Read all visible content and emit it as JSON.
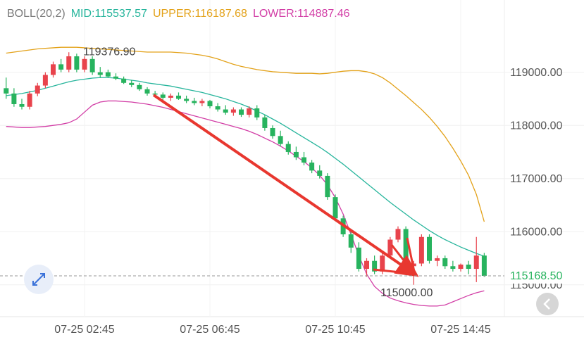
{
  "chart_data": {
    "type": "candlestick",
    "indicator_labels": [
      {
        "text": "BOLL(20,2)",
        "color": "#7a7a7a"
      },
      {
        "text": "MID:115537.57",
        "color": "#27b59c"
      },
      {
        "text": "UPPER:116187.68",
        "color": "#e3a21a"
      },
      {
        "text": "LOWER:114887.46",
        "color": "#d23ea6"
      }
    ],
    "categories": [
      null,
      null,
      null,
      null,
      null,
      null,
      null,
      null,
      null,
      null,
      "07-25 02:45",
      null,
      null,
      null,
      null,
      null,
      null,
      null,
      null,
      null,
      null,
      null,
      null,
      null,
      null,
      null,
      "07-25 06:45",
      null,
      null,
      null,
      null,
      null,
      null,
      null,
      null,
      null,
      null,
      null,
      null,
      null,
      null,
      null,
      "07-25 10:45",
      null,
      null,
      null,
      null,
      null,
      null,
      null,
      null,
      null,
      null,
      null,
      null,
      null,
      null,
      null,
      "07-25 14:45",
      null,
      null,
      null
    ],
    "open": [
      118700,
      118600,
      118400,
      118350,
      118600,
      118750,
      118950,
      119150,
      119050,
      119300,
      119050,
      119250,
      119000,
      119000,
      118920,
      118880,
      118800,
      118760,
      118680,
      118600,
      118580,
      118520,
      118560,
      118500,
      118460,
      118420,
      118460,
      118360,
      118300,
      118240,
      118300,
      118200,
      118320,
      118150,
      117950,
      117800,
      117650,
      117500,
      117400,
      117300,
      117150,
      117050,
      116650,
      116250,
      115950,
      115700,
      115300,
      115450,
      115250,
      115550,
      115850,
      116050,
      115350,
      115400,
      115900,
      115450,
      115500,
      115350,
      115300,
      115380,
      115300,
      115550
    ],
    "high": [
      118900,
      118700,
      118500,
      118650,
      118800,
      119000,
      119200,
      119250,
      119376.9,
      119350,
      119300,
      119300,
      119100,
      119050,
      118980,
      118920,
      118850,
      118800,
      118720,
      118650,
      118620,
      118600,
      118620,
      118560,
      118520,
      118500,
      118480,
      118420,
      118380,
      118340,
      118340,
      118360,
      118380,
      118200,
      118000,
      117900,
      117700,
      117600,
      117500,
      117350,
      117250,
      117100,
      116700,
      116300,
      116050,
      115800,
      115500,
      115550,
      115600,
      115900,
      116100,
      116100,
      115450,
      115950,
      115950,
      115550,
      115550,
      115450,
      115400,
      115450,
      115900,
      115600
    ],
    "low": [
      118500,
      118350,
      118300,
      118300,
      118550,
      118700,
      118900,
      119000,
      119000,
      119000,
      119000,
      118950,
      118900,
      118900,
      118850,
      118780,
      118720,
      118650,
      118560,
      118540,
      118480,
      118460,
      118480,
      118420,
      118380,
      118360,
      118320,
      118260,
      118200,
      118180,
      118160,
      118150,
      118100,
      117900,
      117750,
      117600,
      117450,
      117350,
      117250,
      117100,
      117000,
      116600,
      116200,
      115900,
      115600,
      115250,
      115150,
      115200,
      115200,
      115500,
      115800,
      115300,
      115000,
      115350,
      115400,
      115350,
      115300,
      115250,
      115250,
      115200,
      115050,
      115150
    ],
    "close": [
      118600,
      118400,
      118350,
      118600,
      118750,
      118950,
      119150,
      119050,
      119300,
      119050,
      119250,
      119000,
      118950,
      118920,
      118880,
      118800,
      118760,
      118680,
      118600,
      118580,
      118520,
      118560,
      118500,
      118460,
      118420,
      118460,
      118360,
      118300,
      118240,
      118300,
      118200,
      118320,
      118150,
      117950,
      117800,
      117650,
      117500,
      117400,
      117300,
      117150,
      117050,
      116650,
      116250,
      115950,
      115700,
      115300,
      115450,
      115250,
      115550,
      115850,
      116050,
      115350,
      115400,
      115900,
      115450,
      115500,
      115350,
      115300,
      115380,
      115300,
      115550,
      115168.5
    ],
    "up_color": "#e8434c",
    "down_color": "#27b35e",
    "bands": [
      {
        "color": "#27b59c",
        "values": [
          118560,
          118580,
          118600,
          118630,
          118660,
          118700,
          118740,
          118780,
          118820,
          118850,
          118870,
          118890,
          118900,
          118900,
          118890,
          118870,
          118850,
          118830,
          118800,
          118780,
          118760,
          118740,
          118710,
          118680,
          118650,
          118620,
          118580,
          118540,
          118500,
          118450,
          118400,
          118340,
          118270,
          118200,
          118120,
          118040,
          117950,
          117860,
          117770,
          117680,
          117590,
          117490,
          117380,
          117270,
          117150,
          117030,
          116910,
          116790,
          116670,
          116550,
          116440,
          116330,
          116220,
          116120,
          116020,
          115930,
          115850,
          115780,
          115710,
          115650,
          115590,
          115537.57
        ]
      },
      {
        "color": "#e3a21a",
        "values": [
          119360,
          119380,
          119400,
          119420,
          119440,
          119450,
          119460,
          119470,
          119470,
          119470,
          119460,
          119450,
          119440,
          119430,
          119420,
          119410,
          119400,
          119390,
          119380,
          119380,
          119380,
          119380,
          119370,
          119360,
          119340,
          119320,
          119290,
          119250,
          119200,
          119150,
          119110,
          119080,
          119050,
          119030,
          119010,
          119000,
          118990,
          118980,
          118980,
          118980,
          118970,
          118980,
          119000,
          119020,
          119030,
          119030,
          119010,
          118970,
          118900,
          118800,
          118680,
          118560,
          118430,
          118300,
          118150,
          117980,
          117790,
          117570,
          117330,
          117060,
          116700,
          116187.68
        ]
      },
      {
        "color": "#d23ea6",
        "values": [
          117980,
          117970,
          117960,
          117960,
          117970,
          117980,
          118000,
          118020,
          118050,
          118120,
          118250,
          118380,
          118440,
          118460,
          118460,
          118450,
          118440,
          118420,
          118400,
          118370,
          118340,
          118300,
          118260,
          118220,
          118180,
          118140,
          118100,
          118060,
          118020,
          117980,
          117940,
          117890,
          117830,
          117760,
          117690,
          117610,
          117520,
          117420,
          117320,
          117200,
          117060,
          116880,
          116640,
          116330,
          115950,
          115550,
          115200,
          114970,
          114840,
          114750,
          114700,
          114660,
          114630,
          114610,
          114600,
          114600,
          114620,
          114680,
          114740,
          114800,
          114850,
          114887.46
        ]
      }
    ],
    "ylim": [
      114400,
      120360
    ],
    "yticks": [
      {
        "value": 115000,
        "label": "115000.00"
      },
      {
        "value": 116000,
        "label": "116000.00"
      },
      {
        "value": 117000,
        "label": "117000.00"
      },
      {
        "value": 118000,
        "label": "118000.00"
      },
      {
        "value": 119000,
        "label": "119000.00"
      }
    ],
    "grid": true,
    "last_price": {
      "value": 115168.5,
      "label": "115168.50"
    },
    "annotations": [
      {
        "value": 119376.9,
        "label": "119376.90"
      },
      {
        "value": 115000,
        "label": "115000.00"
      }
    ]
  }
}
